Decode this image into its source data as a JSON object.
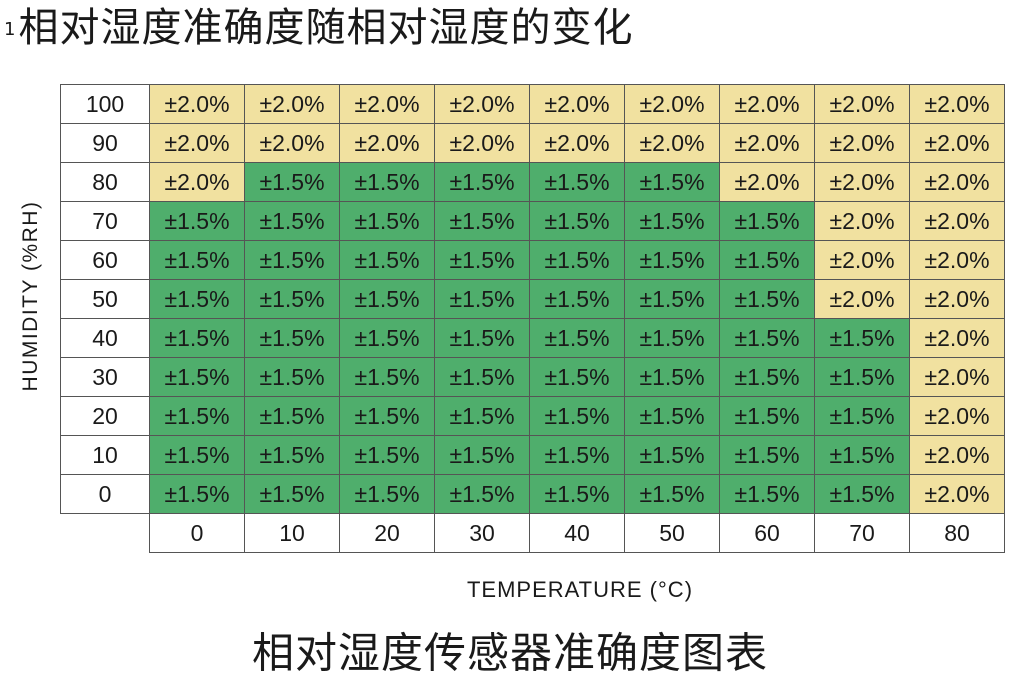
{
  "header": {
    "footnote_mark": "1",
    "title": "相对湿度准确度随相对湿度的变化"
  },
  "footer": {
    "caption": "相对湿度传感器准确度图表"
  },
  "colors": {
    "green": "#4fae6c",
    "yellow": "#f1e1a0",
    "border": "#555555"
  },
  "chart_data": {
    "type": "heatmap",
    "title": "相对湿度准确度随相对湿度的变化",
    "caption": "相对湿度传感器准确度图表",
    "xlabel": "TEMPERATURE (°C)",
    "ylabel": "HUMIDITY (%RH)",
    "x": [
      "0",
      "10",
      "20",
      "30",
      "40",
      "50",
      "60",
      "70",
      "80"
    ],
    "y": [
      "100",
      "90",
      "80",
      "70",
      "60",
      "50",
      "40",
      "30",
      "20",
      "10",
      "0"
    ],
    "legend": {
      "±1.5%": "green",
      "±2.0%": "yellow"
    },
    "values": [
      [
        "±2.0%",
        "±2.0%",
        "±2.0%",
        "±2.0%",
        "±2.0%",
        "±2.0%",
        "±2.0%",
        "±2.0%",
        "±2.0%"
      ],
      [
        "±2.0%",
        "±2.0%",
        "±2.0%",
        "±2.0%",
        "±2.0%",
        "±2.0%",
        "±2.0%",
        "±2.0%",
        "±2.0%"
      ],
      [
        "±2.0%",
        "±1.5%",
        "±1.5%",
        "±1.5%",
        "±1.5%",
        "±1.5%",
        "±2.0%",
        "±2.0%",
        "±2.0%"
      ],
      [
        "±1.5%",
        "±1.5%",
        "±1.5%",
        "±1.5%",
        "±1.5%",
        "±1.5%",
        "±1.5%",
        "±2.0%",
        "±2.0%"
      ],
      [
        "±1.5%",
        "±1.5%",
        "±1.5%",
        "±1.5%",
        "±1.5%",
        "±1.5%",
        "±1.5%",
        "±2.0%",
        "±2.0%"
      ],
      [
        "±1.5%",
        "±1.5%",
        "±1.5%",
        "±1.5%",
        "±1.5%",
        "±1.5%",
        "±1.5%",
        "±2.0%",
        "±2.0%"
      ],
      [
        "±1.5%",
        "±1.5%",
        "±1.5%",
        "±1.5%",
        "±1.5%",
        "±1.5%",
        "±1.5%",
        "±1.5%",
        "±2.0%"
      ],
      [
        "±1.5%",
        "±1.5%",
        "±1.5%",
        "±1.5%",
        "±1.5%",
        "±1.5%",
        "±1.5%",
        "±1.5%",
        "±2.0%"
      ],
      [
        "±1.5%",
        "±1.5%",
        "±1.5%",
        "±1.5%",
        "±1.5%",
        "±1.5%",
        "±1.5%",
        "±1.5%",
        "±2.0%"
      ],
      [
        "±1.5%",
        "±1.5%",
        "±1.5%",
        "±1.5%",
        "±1.5%",
        "±1.5%",
        "±1.5%",
        "±1.5%",
        "±2.0%"
      ],
      [
        "±1.5%",
        "±1.5%",
        "±1.5%",
        "±1.5%",
        "±1.5%",
        "±1.5%",
        "±1.5%",
        "±1.5%",
        "±2.0%"
      ]
    ]
  }
}
